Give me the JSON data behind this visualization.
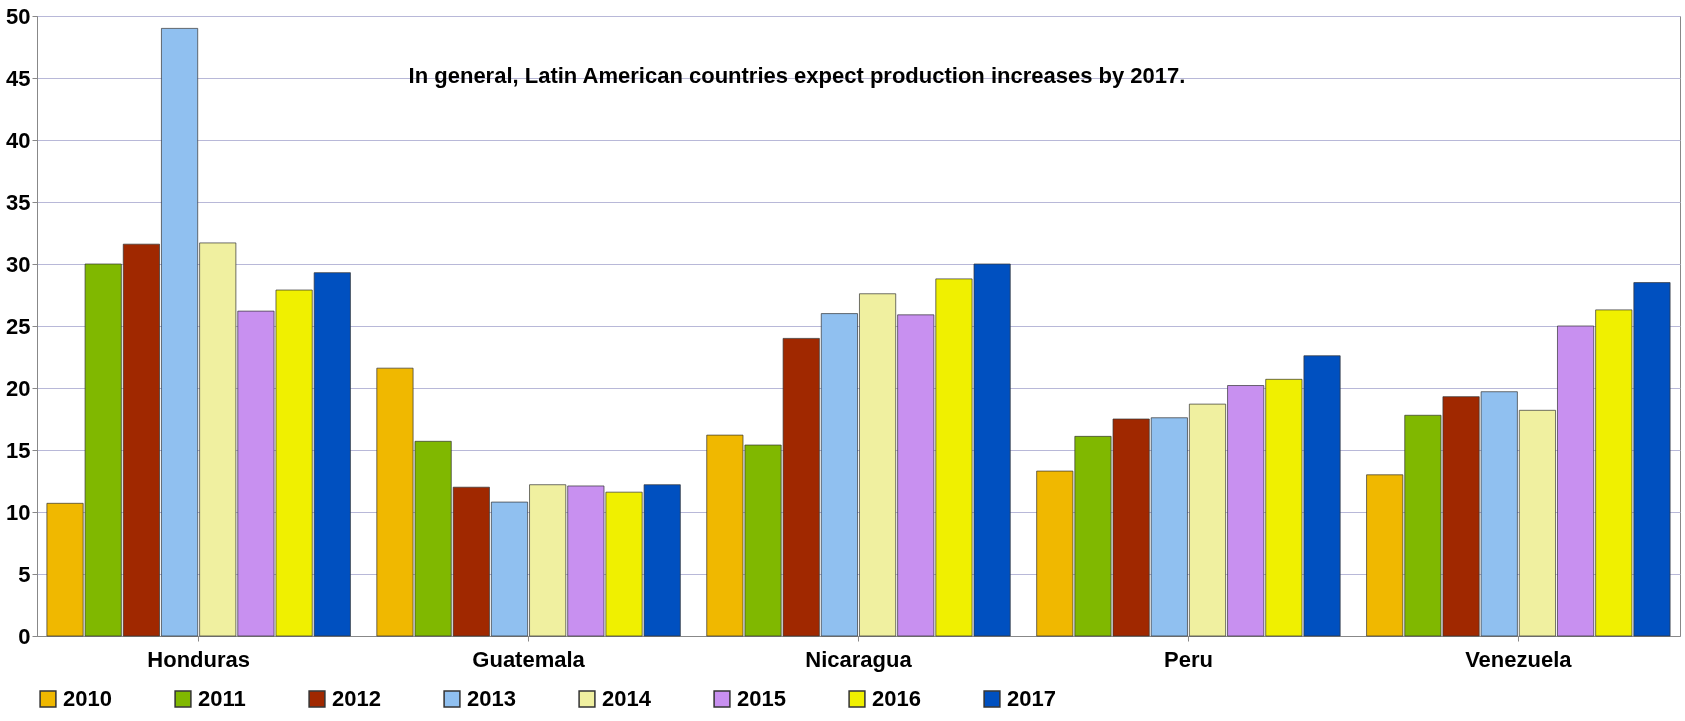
{
  "chart_data": {
    "type": "bar",
    "categories": [
      "Honduras",
      "Guatemala",
      "Nicaragua",
      "Peru",
      "Venezuela"
    ],
    "series": [
      {
        "name": "2010",
        "color": "#f0b800",
        "values": [
          10.7,
          21.6,
          16.2,
          13.3,
          13.0
        ]
      },
      {
        "name": "2011",
        "color": "#80b800",
        "values": [
          30.0,
          15.7,
          15.4,
          16.1,
          17.8
        ]
      },
      {
        "name": "2012",
        "color": "#a02800",
        "values": [
          31.6,
          12.0,
          24.0,
          17.5,
          19.3
        ]
      },
      {
        "name": "2013",
        "color": "#90c0f0",
        "values": [
          49.0,
          10.8,
          26.0,
          17.6,
          19.7
        ]
      },
      {
        "name": "2014",
        "color": "#f0f0a0",
        "values": [
          31.7,
          12.2,
          27.6,
          18.7,
          18.2
        ]
      },
      {
        "name": "2015",
        "color": "#c890f0",
        "values": [
          26.2,
          12.1,
          25.9,
          20.2,
          25.0
        ]
      },
      {
        "name": "2016",
        "color": "#f0f000",
        "values": [
          27.9,
          11.6,
          28.8,
          20.7,
          26.3
        ]
      },
      {
        "name": "2017",
        "color": "#0050c0",
        "values": [
          29.3,
          12.2,
          30.0,
          22.6,
          28.5
        ]
      }
    ],
    "ylim": [
      0,
      50
    ],
    "yticks": [
      0,
      5,
      10,
      15,
      20,
      25,
      30,
      35,
      40,
      45,
      50
    ],
    "grid": "y",
    "legend": "bottom",
    "annotations": [
      "In general, Latin American countries expect production increases by 2017."
    ]
  }
}
